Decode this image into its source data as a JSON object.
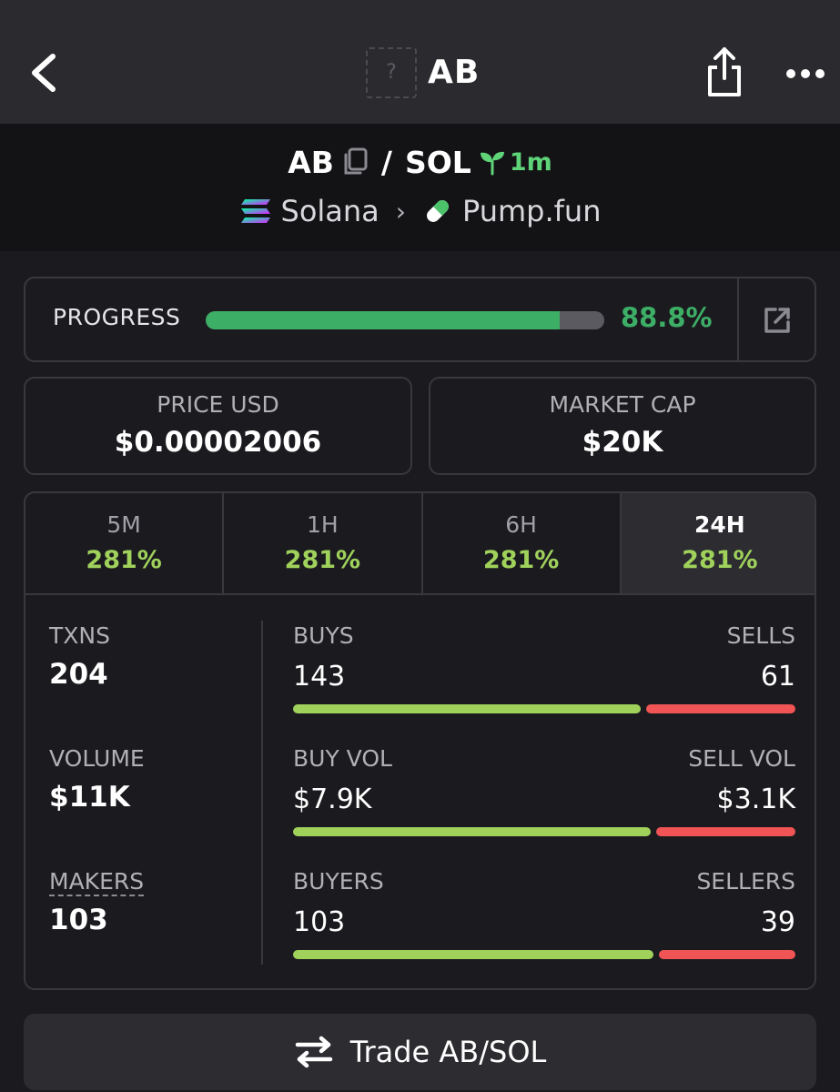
{
  "header": {
    "title": "AB",
    "thumb_placeholder": "?"
  },
  "pair": {
    "base": "AB",
    "separator": "/",
    "quote": "SOL",
    "age": "1m",
    "chain": "Solana",
    "dex": "Pump.fun"
  },
  "progress": {
    "label": "PROGRESS",
    "value_text": "88.8%",
    "fraction": 0.888
  },
  "stats": {
    "price_label": "PRICE USD",
    "price_value": "$0.00002006",
    "mcap_label": "MARKET CAP",
    "mcap_value": "$20K"
  },
  "tabs": [
    {
      "label": "5M",
      "value": "281%"
    },
    {
      "label": "1H",
      "value": "281%"
    },
    {
      "label": "6H",
      "value": "281%"
    },
    {
      "label": "24H",
      "value": "281%",
      "active": true
    }
  ],
  "metrics": {
    "txns_label": "TXNS",
    "txns_value": "204",
    "volume_label": "VOLUME",
    "volume_value": "$11K",
    "makers_label": "MAKERS",
    "makers_value": "103"
  },
  "splits": [
    {
      "left_label": "BUYS",
      "right_label": "SELLS",
      "left_value": "143",
      "right_value": "61",
      "left_share": 0.7
    },
    {
      "left_label": "BUY VOL",
      "right_label": "SELL VOL",
      "left_value": "$7.9K",
      "right_value": "$3.1K",
      "left_share": 0.72
    },
    {
      "left_label": "BUYERS",
      "right_label": "SELLERS",
      "left_value": "103",
      "right_value": "39",
      "left_share": 0.725
    }
  ],
  "trade_button": {
    "label": "Trade AB/SOL"
  },
  "colors": {
    "buy": "#9fd15b",
    "sell": "#f05454",
    "progress": "#3dae66",
    "age": "#5fd377"
  }
}
